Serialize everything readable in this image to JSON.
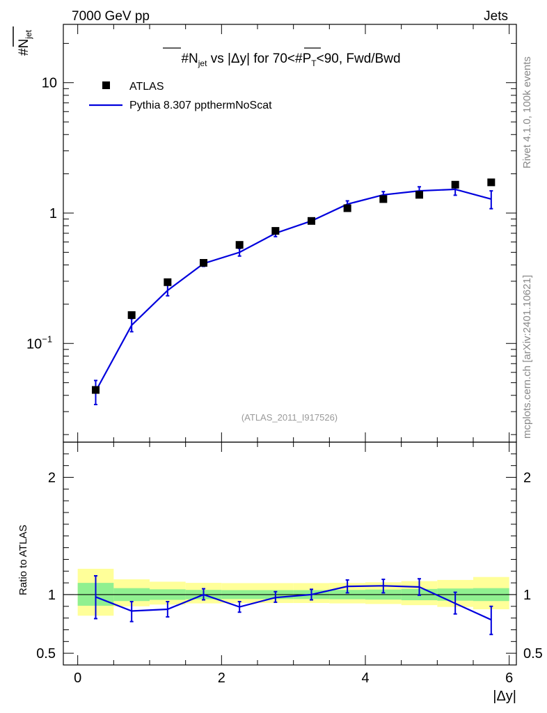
{
  "header": {
    "left": "7000 GeV pp",
    "right": "Jets"
  },
  "side_text": {
    "rivet": "Rivet 4.1.0,  100k events",
    "mcplots": "mcplots.cern.ch [arXiv:2401.10621]"
  },
  "watermark": "(ATLAS_2011_I917526)",
  "title": {
    "prefix": "#",
    "n": "N",
    "n_sub": "jet",
    "middle": " vs |Δy| for 70<#",
    "p": "P",
    "p_sub": "T",
    "suffix": "<90, Fwd/Bwd"
  },
  "ylabel_main": {
    "hash": "#",
    "n": "N",
    "sub": "jet"
  },
  "ylabel_ratio": "Ratio to ATLAS",
  "xlabel": "|Δy|",
  "legend": {
    "data_label": "ATLAS",
    "mc_label": "Pythia 8.307 ppthermNoScat"
  },
  "colors": {
    "data": "#000000",
    "mc": "#0000dd",
    "band_inner": "#90f090",
    "band_outer": "#ffff99"
  },
  "chart_data": {
    "type": "scatter",
    "xlim": [
      -0.2,
      6.1
    ],
    "main": {
      "yscale": "log",
      "ylim": [
        0.0175,
        28
      ],
      "yticks": [
        {
          "value": 0.1,
          "label": "10",
          "sup": "−1"
        },
        {
          "value": 1,
          "label": "1",
          "sup": ""
        },
        {
          "value": 10,
          "label": "10",
          "sup": ""
        }
      ]
    },
    "ratio": {
      "ylim": [
        0.4,
        2.3
      ],
      "yticks": [
        {
          "value": 0.5,
          "label": "0.5"
        },
        {
          "value": 1,
          "label": "1"
        },
        {
          "value": 2,
          "label": "2"
        }
      ]
    },
    "xticks": [
      {
        "value": 0,
        "label": "0"
      },
      {
        "value": 2,
        "label": "2"
      },
      {
        "value": 4,
        "label": "4"
      },
      {
        "value": 6,
        "label": "6"
      }
    ],
    "bin_edges": [
      0,
      0.5,
      1,
      1.5,
      2,
      2.5,
      3,
      3.5,
      4,
      4.5,
      5,
      5.5,
      6
    ],
    "x": [
      0.25,
      0.75,
      1.25,
      1.75,
      2.25,
      2.75,
      3.25,
      3.75,
      4.25,
      4.75,
      5.25,
      5.75
    ],
    "series": [
      {
        "name": "ATLAS",
        "values": [
          0.044,
          0.165,
          0.295,
          0.415,
          0.57,
          0.73,
          0.87,
          1.09,
          1.28,
          1.38,
          1.65,
          1.72
        ]
      },
      {
        "name": "Pythia 8.307 ppthermNoScat",
        "values": [
          0.043,
          0.138,
          0.255,
          0.41,
          0.5,
          0.7,
          0.87,
          1.17,
          1.38,
          1.48,
          1.52,
          1.28
        ],
        "err_low": [
          0.034,
          0.123,
          0.232,
          0.39,
          0.468,
          0.66,
          0.83,
          1.11,
          1.3,
          1.38,
          1.37,
          1.08
        ],
        "err_high": [
          0.052,
          0.155,
          0.28,
          0.432,
          0.535,
          0.74,
          0.91,
          1.24,
          1.46,
          1.59,
          1.68,
          1.48
        ]
      }
    ],
    "ratio_series": {
      "values": [
        0.98,
        0.86,
        0.875,
        1.0,
        0.895,
        0.975,
        1.0,
        1.07,
        1.075,
        1.065,
        0.925,
        0.785
      ],
      "err_low": [
        0.795,
        0.77,
        0.81,
        0.955,
        0.85,
        0.935,
        0.955,
        1.015,
        1.015,
        0.995,
        0.835,
        0.66
      ],
      "err_high": [
        1.16,
        0.94,
        0.94,
        1.05,
        0.94,
        1.025,
        1.045,
        1.125,
        1.13,
        1.135,
        1.02,
        0.9
      ]
    },
    "band_inner": {
      "low": [
        0.905,
        0.945,
        0.955,
        0.96,
        0.962,
        0.962,
        0.962,
        0.96,
        0.957,
        0.952,
        0.948,
        0.945
      ],
      "high": [
        1.1,
        1.055,
        1.045,
        1.04,
        1.038,
        1.038,
        1.038,
        1.04,
        1.043,
        1.048,
        1.052,
        1.055
      ]
    },
    "band_outer": {
      "low": [
        0.82,
        0.9,
        0.915,
        0.925,
        0.928,
        0.928,
        0.928,
        0.925,
        0.92,
        0.91,
        0.895,
        0.875
      ],
      "high": [
        1.22,
        1.13,
        1.11,
        1.1,
        1.098,
        1.098,
        1.098,
        1.1,
        1.105,
        1.115,
        1.125,
        1.15
      ]
    }
  }
}
